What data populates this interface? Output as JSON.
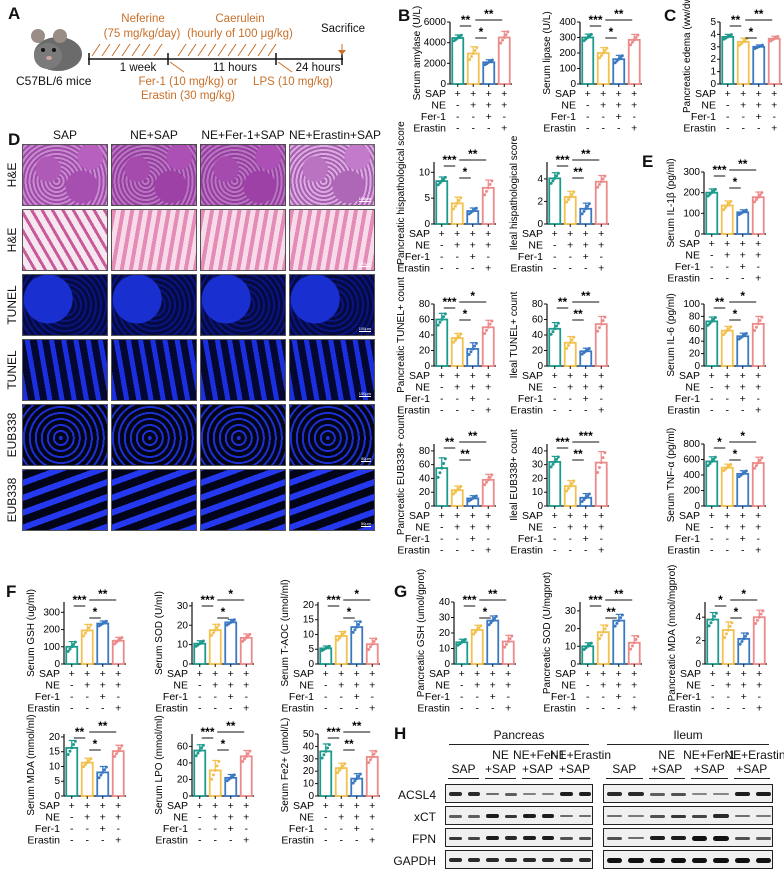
{
  "colors": {
    "SAP": "#1c9a8e",
    "NE+SAP": "#f2c14e",
    "NE+Fer-1+SAP": "#3a78c2",
    "NE+Erastin+SAP": "#ec8a8a",
    "timeline_orange": "#c8702a"
  },
  "panel_letters": [
    "A",
    "B",
    "C",
    "D",
    "E",
    "F",
    "G",
    "H"
  ],
  "condition_rows": {
    "labels": [
      "SAP",
      "NE",
      "Fer-1",
      "Erastin"
    ],
    "values": [
      [
        "+",
        "+",
        "+",
        "+"
      ],
      [
        "-",
        "+",
        "+",
        "+"
      ],
      [
        "-",
        "-",
        "+",
        "-"
      ],
      [
        "-",
        "-",
        "-",
        "+"
      ]
    ]
  },
  "panelA": {
    "mouse_label": "C57BL/6 mice",
    "neferine": "Neferine",
    "neferine_dose": "(75 mg/kg/day)",
    "caerulein": "Caerulein",
    "caerulein_dose": "(hourly of 100 μg/kg)",
    "sacrifice": "Sacrifice",
    "period1": "1 week",
    "period2": "11 hours",
    "period3": "24 hours",
    "fer1_line1": "Fer-1 (10 mg/kg) or",
    "fer1_line2": "Erastin (30 mg/kg)",
    "lps": "LPS (10 mg/kg)"
  },
  "panelD": {
    "columns": [
      "SAP",
      "NE+SAP",
      "NE+Fer-1+SAP",
      "NE+Erastin+SAP"
    ],
    "rows": [
      "H&E",
      "H&E",
      "TUNEL",
      "TUNEL",
      "EUB338",
      "EUB338"
    ],
    "scale_bars": [
      "100μm",
      "100μm",
      "100μm",
      "100μm",
      "50μm",
      "50μm"
    ]
  },
  "panelH": {
    "tissues": [
      "Pancreas",
      "Ileum"
    ],
    "groups": [
      {
        "line1": "",
        "line2": "SAP"
      },
      {
        "line1": "NE",
        "line2": "+SAP"
      },
      {
        "line1": "NE+Fer-1",
        "line2": "+SAP"
      },
      {
        "line1": "NE+Erastin",
        "line2": "+SAP"
      }
    ],
    "proteins": [
      "ACSL4",
      "xCT",
      "FPN",
      "GAPDH"
    ]
  },
  "chart_data": [
    {
      "id": "B1",
      "type": "bar",
      "panel": "B",
      "ylabel": "Serum amylase (U/L)",
      "ylim": [
        0,
        6000
      ],
      "yticks": [
        0,
        2000,
        4000,
        6000
      ],
      "categories": [
        "SAP",
        "NE+SAP",
        "NE+Fer-1+SAP",
        "NE+Erastin+SAP"
      ],
      "values": [
        4450,
        2950,
        2100,
        4500
      ],
      "errors": [
        300,
        650,
        250,
        600
      ],
      "significance": [
        {
          "pair": [
            0,
            1
          ],
          "label": "**"
        },
        {
          "pair": [
            1,
            2
          ],
          "label": "*"
        },
        {
          "pair": [
            1,
            3
          ],
          "label": "**"
        }
      ]
    },
    {
      "id": "B2",
      "type": "bar",
      "panel": "B",
      "ylabel": "Serum lipase (U/L)",
      "ylim": [
        0,
        400
      ],
      "yticks": [
        0,
        100,
        200,
        300,
        400
      ],
      "categories": [
        "SAP",
        "NE+SAP",
        "NE+Fer-1+SAP",
        "NE+Erastin+SAP"
      ],
      "values": [
        300,
        200,
        160,
        285
      ],
      "errors": [
        22,
        35,
        25,
        35
      ],
      "significance": [
        {
          "pair": [
            0,
            1
          ],
          "label": "***"
        },
        {
          "pair": [
            1,
            2
          ],
          "label": "*"
        },
        {
          "pair": [
            1,
            3
          ],
          "label": "**"
        }
      ]
    },
    {
      "id": "C1",
      "type": "bar",
      "panel": "C",
      "ylabel": "Pancreatic edema (ww/dw)",
      "ylim": [
        0,
        5
      ],
      "yticks": [
        0,
        1,
        2,
        3,
        4,
        5
      ],
      "categories": [
        "SAP",
        "NE+SAP",
        "NE+Fer-1+SAP",
        "NE+Erastin+SAP"
      ],
      "values": [
        3.8,
        3.4,
        3.0,
        3.65
      ],
      "errors": [
        0.2,
        0.3,
        0.15,
        0.2
      ],
      "significance": [
        {
          "pair": [
            0,
            1
          ],
          "label": "**"
        },
        {
          "pair": [
            1,
            2
          ],
          "label": "*"
        },
        {
          "pair": [
            1,
            3
          ],
          "label": "**"
        }
      ]
    },
    {
      "id": "D1",
      "type": "bar",
      "panel": "D",
      "ylabel": "Pancreatic hispathological score",
      "ylim": [
        0,
        12
      ],
      "yticks": [
        0,
        5,
        10
      ],
      "categories": [
        "SAP",
        "NE+SAP",
        "NE+Fer-1+SAP",
        "NE+Erastin+SAP"
      ],
      "values": [
        8.3,
        4.0,
        2.5,
        7.0
      ],
      "errors": [
        0.8,
        1.2,
        0.6,
        1.5
      ],
      "significance": [
        {
          "pair": [
            0,
            1
          ],
          "label": "***"
        },
        {
          "pair": [
            1,
            2
          ],
          "label": "*"
        },
        {
          "pair": [
            1,
            3
          ],
          "label": "**"
        }
      ]
    },
    {
      "id": "D2",
      "type": "bar",
      "panel": "D",
      "ylabel": "Ileal hispathological score",
      "ylim": [
        0,
        5.5
      ],
      "yticks": [
        0,
        2,
        4
      ],
      "categories": [
        "SAP",
        "NE+SAP",
        "NE+Fer-1+SAP",
        "NE+Erastin+SAP"
      ],
      "values": [
        4.05,
        2.4,
        1.35,
        3.75
      ],
      "errors": [
        0.5,
        0.5,
        0.5,
        0.55
      ],
      "significance": [
        {
          "pair": [
            0,
            1
          ],
          "label": "***"
        },
        {
          "pair": [
            1,
            2
          ],
          "label": "**"
        },
        {
          "pair": [
            1,
            3
          ],
          "label": "**"
        }
      ]
    },
    {
      "id": "D3",
      "type": "bar",
      "panel": "D",
      "ylabel": "Pancreatic TUNEL+ count",
      "ylim": [
        0,
        80
      ],
      "yticks": [
        0,
        20,
        40,
        60,
        80
      ],
      "categories": [
        "SAP",
        "NE+SAP",
        "NE+Fer-1+SAP",
        "NE+Erastin+SAP"
      ],
      "values": [
        60,
        36,
        22,
        50
      ],
      "errors": [
        8,
        6,
        8,
        9
      ],
      "significance": [
        {
          "pair": [
            0,
            1
          ],
          "label": "***"
        },
        {
          "pair": [
            1,
            2
          ],
          "label": "*"
        },
        {
          "pair": [
            1,
            3
          ],
          "label": "*"
        }
      ]
    },
    {
      "id": "D4",
      "type": "bar",
      "panel": "D",
      "ylabel": "Ileal TUNEL+ count",
      "ylim": [
        0,
        80
      ],
      "yticks": [
        0,
        20,
        40,
        60,
        80
      ],
      "categories": [
        "SAP",
        "NE+SAP",
        "NE+Fer-1+SAP",
        "NE+Erastin+SAP"
      ],
      "values": [
        48,
        30,
        19,
        54
      ],
      "errors": [
        8,
        8,
        4,
        10
      ],
      "significance": [
        {
          "pair": [
            0,
            1
          ],
          "label": "**"
        },
        {
          "pair": [
            1,
            2
          ],
          "label": "**"
        },
        {
          "pair": [
            1,
            3
          ],
          "label": "**"
        }
      ]
    },
    {
      "id": "D5",
      "type": "bar",
      "panel": "D",
      "ylabel": "Pancreatic EUB338+ count",
      "ylim": [
        0,
        90
      ],
      "yticks": [
        0,
        20,
        40,
        60,
        80
      ],
      "categories": [
        "SAP",
        "NE+SAP",
        "NE+Fer-1+SAP",
        "NE+Erastin+SAP"
      ],
      "values": [
        55,
        23,
        11,
        38
      ],
      "errors": [
        15,
        6,
        4,
        8
      ],
      "significance": [
        {
          "pair": [
            0,
            1
          ],
          "label": "**"
        },
        {
          "pair": [
            1,
            2
          ],
          "label": "**"
        },
        {
          "pair": [
            1,
            3
          ],
          "label": "**"
        }
      ]
    },
    {
      "id": "D6",
      "type": "bar",
      "panel": "D",
      "ylabel": "Ileal EUB338+ count",
      "ylim": [
        0,
        45
      ],
      "yticks": [
        0,
        10,
        20,
        30,
        40
      ],
      "categories": [
        "SAP",
        "NE+SAP",
        "NE+Fer-1+SAP",
        "NE+Erastin+SAP"
      ],
      "values": [
        32,
        14.5,
        6,
        31.5
      ],
      "errors": [
        4,
        4,
        3,
        8
      ],
      "significance": [
        {
          "pair": [
            0,
            1
          ],
          "label": "***"
        },
        {
          "pair": [
            1,
            2
          ],
          "label": "**"
        },
        {
          "pair": [
            1,
            3
          ],
          "label": "***"
        }
      ]
    },
    {
      "id": "E1",
      "type": "bar",
      "panel": "E",
      "ylabel": "Serum IL-1β (pg/ml)",
      "ylim": [
        0,
        300
      ],
      "yticks": [
        0,
        100,
        200,
        300
      ],
      "categories": [
        "SAP",
        "NE+SAP",
        "NE+Fer-1+SAP",
        "NE+Erastin+SAP"
      ],
      "values": [
        200,
        138,
        105,
        178
      ],
      "errors": [
        18,
        22,
        12,
        25
      ],
      "significance": [
        {
          "pair": [
            0,
            1
          ],
          "label": "***"
        },
        {
          "pair": [
            1,
            2
          ],
          "label": "*"
        },
        {
          "pair": [
            1,
            3
          ],
          "label": "**"
        }
      ]
    },
    {
      "id": "E2",
      "type": "bar",
      "panel": "E",
      "ylabel": "Serum IL-6 (pg/ml)",
      "ylim": [
        0,
        100
      ],
      "yticks": [
        0,
        20,
        40,
        60,
        80,
        100
      ],
      "categories": [
        "SAP",
        "NE+SAP",
        "NE+Fer-1+SAP",
        "NE+Erastin+SAP"
      ],
      "values": [
        72,
        57,
        48,
        68
      ],
      "errors": [
        7,
        7,
        5,
        12
      ],
      "significance": [
        {
          "pair": [
            0,
            1
          ],
          "label": "**"
        },
        {
          "pair": [
            1,
            2
          ],
          "label": "*"
        },
        {
          "pair": [
            1,
            3
          ],
          "label": "*"
        }
      ]
    },
    {
      "id": "E3",
      "type": "bar",
      "panel": "E",
      "ylabel": "Serum TNF-α (pg/ml)",
      "ylim": [
        0,
        800
      ],
      "yticks": [
        0,
        200,
        400,
        600,
        800
      ],
      "categories": [
        "SAP",
        "NE+SAP",
        "NE+Fer-1+SAP",
        "NE+Erastin+SAP"
      ],
      "values": [
        575,
        495,
        415,
        555
      ],
      "errors": [
        60,
        45,
        40,
        75
      ],
      "significance": [
        {
          "pair": [
            0,
            1
          ],
          "label": "*"
        },
        {
          "pair": [
            1,
            2
          ],
          "label": "*"
        },
        {
          "pair": [
            1,
            3
          ],
          "label": "*"
        }
      ]
    },
    {
      "id": "F1",
      "type": "bar",
      "panel": "F",
      "ylabel": "Serum GSH (ug/ml)",
      "ylim": [
        0,
        360
      ],
      "yticks": [
        0,
        100,
        200,
        300
      ],
      "categories": [
        "SAP",
        "NE+SAP",
        "NE+Fer-1+SAP",
        "NE+Erastin+SAP"
      ],
      "values": [
        100,
        195,
        235,
        135
      ],
      "errors": [
        30,
        35,
        15,
        20
      ],
      "significance": [
        {
          "pair": [
            0,
            1
          ],
          "label": "***"
        },
        {
          "pair": [
            1,
            2
          ],
          "label": "*"
        },
        {
          "pair": [
            1,
            3
          ],
          "label": "**"
        }
      ]
    },
    {
      "id": "F2",
      "type": "bar",
      "panel": "F",
      "ylabel": "Serum SOD (U/ml)",
      "ylim": [
        0,
        32
      ],
      "yticks": [
        0,
        10,
        20,
        30
      ],
      "categories": [
        "SAP",
        "NE+SAP",
        "NE+Fer-1+SAP",
        "NE+Erastin+SAP"
      ],
      "values": [
        10.5,
        17.5,
        21.5,
        13.5
      ],
      "errors": [
        1.5,
        3,
        1.5,
        2
      ],
      "significance": [
        {
          "pair": [
            0,
            1
          ],
          "label": "***"
        },
        {
          "pair": [
            1,
            2
          ],
          "label": "*"
        },
        {
          "pair": [
            1,
            3
          ],
          "label": "*"
        }
      ]
    },
    {
      "id": "F3",
      "type": "bar",
      "panel": "F",
      "ylabel": "Serum T-AOC (umol/ml)",
      "ylim": [
        0,
        21
      ],
      "yticks": [
        0,
        5,
        10,
        15,
        20
      ],
      "categories": [
        "SAP",
        "NE+SAP",
        "NE+Fer-1+SAP",
        "NE+Erastin+SAP"
      ],
      "values": [
        5.3,
        9.5,
        12.5,
        6.7
      ],
      "errors": [
        0.8,
        1.5,
        2,
        2
      ],
      "significance": [
        {
          "pair": [
            0,
            1
          ],
          "label": "***"
        },
        {
          "pair": [
            1,
            2
          ],
          "label": "*"
        },
        {
          "pair": [
            1,
            3
          ],
          "label": "*"
        }
      ]
    },
    {
      "id": "F4",
      "type": "bar",
      "panel": "F",
      "ylabel": "Serum MDA (mmol/ml)",
      "ylim": [
        0,
        21
      ],
      "yticks": [
        0,
        5,
        10,
        15,
        20
      ],
      "categories": [
        "SAP",
        "NE+SAP",
        "NE+Fer-1+SAP",
        "NE+Erastin+SAP"
      ],
      "values": [
        16.3,
        11.3,
        8.0,
        15.2
      ],
      "errors": [
        2.5,
        1.5,
        2,
        2
      ],
      "significance": [
        {
          "pair": [
            0,
            1
          ],
          "label": "**"
        },
        {
          "pair": [
            1,
            2
          ],
          "label": "*"
        },
        {
          "pair": [
            1,
            3
          ],
          "label": "**"
        }
      ]
    },
    {
      "id": "F5",
      "type": "bar",
      "panel": "F",
      "ylabel": "Serum LPO (mmol/ml)",
      "ylim": [
        0,
        75
      ],
      "yticks": [
        0,
        20,
        40,
        60
      ],
      "categories": [
        "SAP",
        "NE+SAP",
        "NE+Fer-1+SAP",
        "NE+Erastin+SAP"
      ],
      "values": [
        55,
        31,
        22,
        48
      ],
      "errors": [
        7,
        12,
        4,
        7
      ],
      "significance": [
        {
          "pair": [
            0,
            1
          ],
          "label": "***"
        },
        {
          "pair": [
            1,
            2
          ],
          "label": "*"
        },
        {
          "pair": [
            1,
            3
          ],
          "label": "**"
        }
      ]
    },
    {
      "id": "F6",
      "type": "bar",
      "panel": "F",
      "ylabel": "Serum Fe2+ (umol/L)",
      "ylim": [
        0,
        50
      ],
      "yticks": [
        0,
        10,
        20,
        30,
        40,
        50
      ],
      "categories": [
        "SAP",
        "NE+SAP",
        "NE+Fer-1+SAP",
        "NE+Erastin+SAP"
      ],
      "values": [
        36,
        22.5,
        14,
        31.5
      ],
      "errors": [
        6,
        4,
        4,
        5
      ],
      "significance": [
        {
          "pair": [
            0,
            1
          ],
          "label": "***"
        },
        {
          "pair": [
            1,
            2
          ],
          "label": "**"
        },
        {
          "pair": [
            1,
            3
          ],
          "label": "**"
        }
      ]
    },
    {
      "id": "G1",
      "type": "bar",
      "panel": "G",
      "ylabel": "Pancreatic GSH (umol/gprot)",
      "ylim": [
        0,
        40
      ],
      "yticks": [
        0,
        10,
        20,
        30,
        40
      ],
      "categories": [
        "SAP",
        "NE+SAP",
        "NE+Fer-1+SAP",
        "NE+Erastin+SAP"
      ],
      "values": [
        14,
        22,
        28,
        14.5
      ],
      "errors": [
        2,
        3,
        3,
        4
      ],
      "significance": [
        {
          "pair": [
            0,
            1
          ],
          "label": "***"
        },
        {
          "pair": [
            1,
            2
          ],
          "label": "*"
        },
        {
          "pair": [
            1,
            3
          ],
          "label": "**"
        }
      ]
    },
    {
      "id": "G2",
      "type": "bar",
      "panel": "G",
      "ylabel": "Pancreatic SOD (U/mgprot)",
      "ylim": [
        0,
        35
      ],
      "yticks": [
        0,
        10,
        20,
        30
      ],
      "categories": [
        "SAP",
        "NE+SAP",
        "NE+Fer-1+SAP",
        "NE+Erastin+SAP"
      ],
      "values": [
        10,
        18,
        24.5,
        12
      ],
      "errors": [
        2,
        4,
        3.5,
        4
      ],
      "significance": [
        {
          "pair": [
            0,
            1
          ],
          "label": "***"
        },
        {
          "pair": [
            1,
            2
          ],
          "label": "**"
        },
        {
          "pair": [
            1,
            3
          ],
          "label": "**"
        }
      ]
    },
    {
      "id": "G3",
      "type": "bar",
      "panel": "G",
      "ylabel": "Pancreatic MDA (nmol/mgprot)",
      "ylim": [
        0,
        5.3
      ],
      "yticks": [
        0,
        2,
        4
      ],
      "categories": [
        "SAP",
        "NE+SAP",
        "NE+Fer-1+SAP",
        "NE+Erastin+SAP"
      ],
      "values": [
        3.8,
        2.9,
        2.15,
        4.0
      ],
      "errors": [
        0.6,
        0.7,
        0.5,
        0.6
      ],
      "significance": [
        {
          "pair": [
            0,
            1
          ],
          "label": "*"
        },
        {
          "pair": [
            1,
            2
          ],
          "label": "*"
        },
        {
          "pair": [
            1,
            3
          ],
          "label": "*"
        }
      ]
    }
  ]
}
